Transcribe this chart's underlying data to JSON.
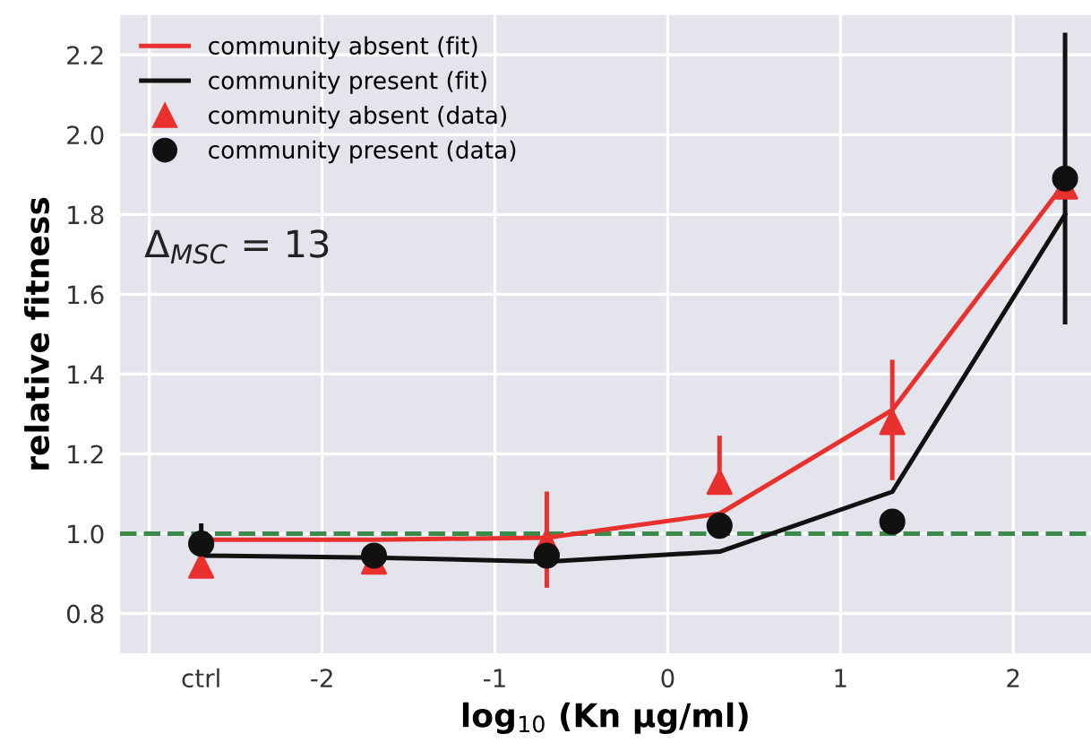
{
  "chart_data": {
    "type": "line",
    "xlabel": "log$_{10}$ (Kn µg/ml)",
    "ylabel": "relative fitness",
    "xlim": [
      -3.17,
      2.45
    ],
    "ylim": [
      0.7,
      2.3
    ],
    "xticks": [
      {
        "value": -3,
        "label": null
      },
      {
        "value": -2.7,
        "label": "ctrl"
      },
      -2,
      -1,
      0,
      1,
      2
    ],
    "yticks": [
      0.8,
      {
        "value": 1,
        "label": "1.0"
      },
      1.2,
      1.4,
      1.6,
      1.8,
      {
        "value": 2,
        "label": "2.0"
      },
      2.2
    ],
    "grid": true,
    "legend": "top left",
    "x": [
      -2.7,
      -1.7,
      -0.7,
      0.3,
      1.3,
      2.3
    ],
    "series": [
      {
        "name": "community absent (fit)",
        "color": "#e8302e",
        "marker": "none",
        "values": [
          0.985,
          0.985,
          0.99,
          1.05,
          1.31,
          1.88
        ]
      },
      {
        "name": "community present (fit)",
        "color": "#111111",
        "marker": "none",
        "values": [
          0.945,
          0.94,
          0.93,
          0.955,
          1.105,
          1.8
        ]
      },
      {
        "name": "community absent (data)",
        "type": "scatter",
        "color": "#e8302e",
        "marker": "triangle",
        "values": [
          0.92,
          0.93,
          0.98,
          1.13,
          1.28,
          1.87
        ],
        "errors": [
          null,
          null,
          [
            0.87,
            1.1
          ],
          [
            1.13,
            1.24
          ],
          [
            1.14,
            1.43
          ],
          null
        ]
      },
      {
        "name": "community present (data)",
        "type": "scatter",
        "color": "#111111",
        "marker": "circle",
        "values": [
          0.975,
          0.945,
          0.945,
          1.02,
          1.03,
          1.89
        ],
        "errors": [
          [
            0.95,
            1.02
          ],
          null,
          null,
          null,
          null,
          [
            1.53,
            2.25
          ]
        ]
      }
    ],
    "ref_lines": [
      {
        "axis": "y",
        "value": 1.0,
        "color": "#3a8a4a",
        "line_style": "dashed"
      }
    ],
    "annotations": [
      "Δ$_{MSC}$ = 13"
    ]
  }
}
